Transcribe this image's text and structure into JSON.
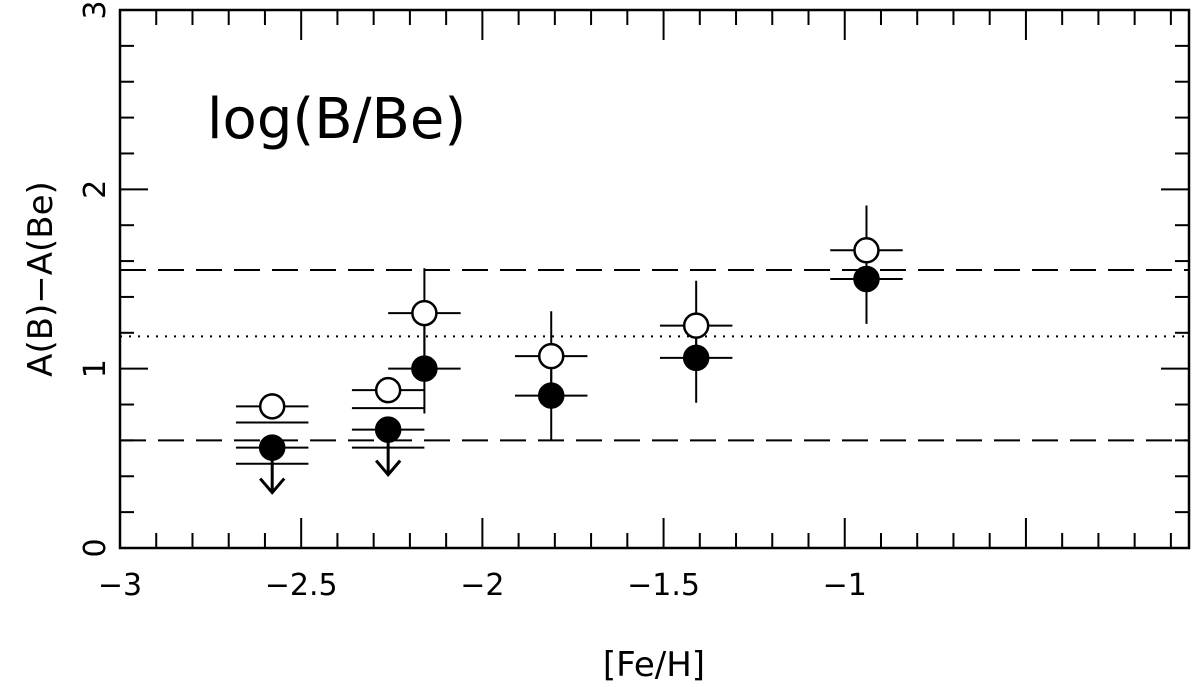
{
  "chart_data": {
    "type": "scatter",
    "annotation": "log(B/Be)",
    "xlabel": "[Fe/H]",
    "ylabel": "A(B)−A(Be)",
    "xlim": [
      -3.0,
      -0.05
    ],
    "ylim": [
      0,
      3
    ],
    "x_ticks": [
      -3,
      -2.5,
      -2,
      -1.5,
      -1
    ],
    "x_tick_labels": [
      "−3",
      "−2.5",
      "−2",
      "−1.5",
      "−1"
    ],
    "y_ticks": [
      0,
      1,
      2,
      3
    ],
    "y_tick_labels": [
      "0",
      "1",
      "2",
      "3"
    ],
    "grid": false,
    "reference_lines": [
      {
        "style": "dashed",
        "y": 1.55
      },
      {
        "style": "dotted",
        "y": 1.18
      },
      {
        "style": "dashed",
        "y": 0.6
      }
    ],
    "series": [
      {
        "marker": "open-circle",
        "points": [
          {
            "x": -2.58,
            "y": 0.79,
            "xerr": 0.1,
            "upper_limit": true
          },
          {
            "x": -2.26,
            "y": 0.88,
            "xerr": 0.1,
            "upper_limit": true
          },
          {
            "x": -2.16,
            "y": 1.31,
            "xerr": 0.1,
            "yerr": 0.25
          },
          {
            "x": -1.81,
            "y": 1.07,
            "xerr": 0.1,
            "yerr": 0.25
          },
          {
            "x": -1.41,
            "y": 1.24,
            "xerr": 0.1,
            "yerr": 0.25
          },
          {
            "x": -0.94,
            "y": 1.66,
            "xerr": 0.1,
            "yerr": 0.25
          }
        ]
      },
      {
        "marker": "filled-circle",
        "points": [
          {
            "x": -2.58,
            "y": 0.56,
            "xerr": 0.1,
            "upper_limit": true
          },
          {
            "x": -2.26,
            "y": 0.66,
            "xerr": 0.1,
            "upper_limit": true
          },
          {
            "x": -2.16,
            "y": 1.0,
            "xerr": 0.1,
            "yerr": 0.25
          },
          {
            "x": -1.81,
            "y": 0.85,
            "xerr": 0.1,
            "yerr": 0.25
          },
          {
            "x": -1.41,
            "y": 1.06,
            "xerr": 0.1,
            "yerr": 0.25
          },
          {
            "x": -0.94,
            "y": 1.5,
            "xerr": 0.1,
            "yerr": 0.25
          }
        ]
      }
    ],
    "extra_limit_bars": [
      {
        "x": -2.58,
        "y": 0.7,
        "xerr": 0.1
      },
      {
        "x": -2.58,
        "y": 0.47,
        "xerr": 0.1
      },
      {
        "x": -2.26,
        "y": 0.78,
        "xerr": 0.1
      },
      {
        "x": -2.26,
        "y": 0.56,
        "xerr": 0.1
      }
    ]
  }
}
